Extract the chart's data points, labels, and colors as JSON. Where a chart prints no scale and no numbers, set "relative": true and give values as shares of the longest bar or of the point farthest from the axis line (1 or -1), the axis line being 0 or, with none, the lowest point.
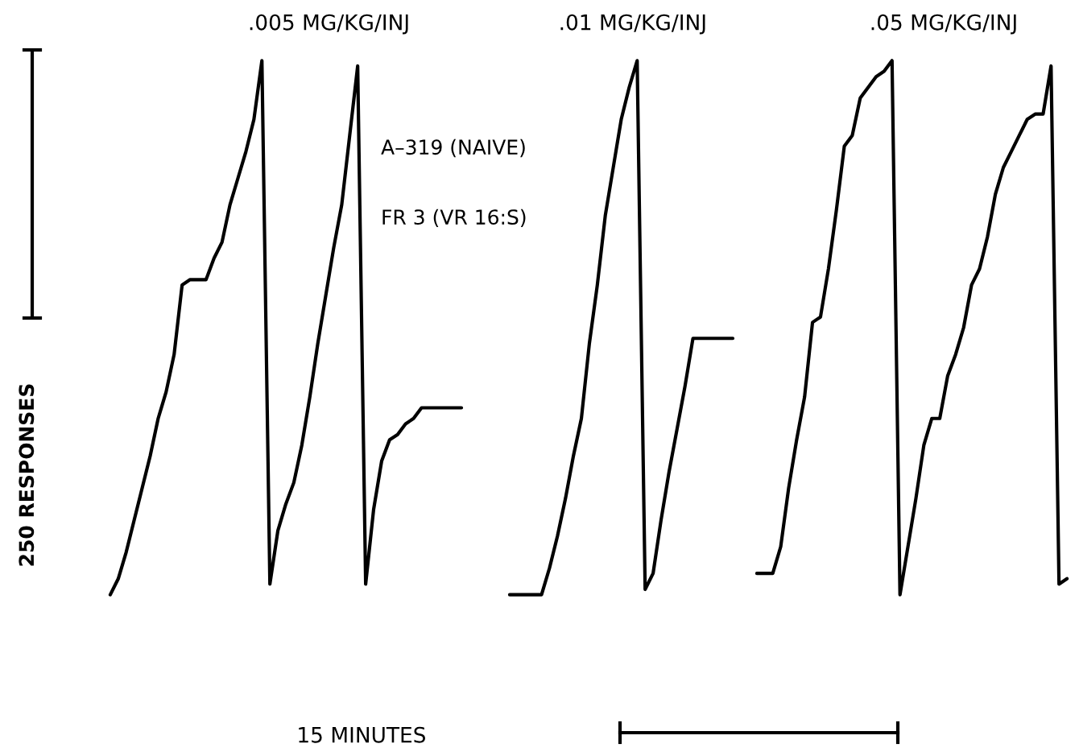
{
  "chart_data": [
    {
      "type": "line",
      "title": ".005 MG/KG/INJ",
      "ylabel": "250 RESPONSES",
      "relative": true,
      "annotations": [
        "A–319 (NAIVE)",
        "FR 3 (VR 16:S)",
        "15 MINUTES"
      ],
      "categories": [
        null,
        null,
        null,
        null,
        null,
        null,
        null,
        null,
        null,
        null,
        null,
        null,
        null,
        null,
        null,
        null,
        null,
        null,
        null,
        null,
        null,
        null,
        null,
        null,
        null,
        null,
        null,
        null,
        null,
        null,
        null,
        null,
        null,
        null,
        null,
        null,
        null,
        null,
        null,
        null,
        null,
        null,
        null,
        null,
        null
      ],
      "series": [
        {
          "color": "#000000",
          "values": [
            0,
            0.03,
            0.08,
            0.14,
            0.2,
            0.26,
            0.33,
            0.38,
            0.45,
            0.58,
            0.59,
            0.59,
            0.59,
            0.63,
            0.66,
            0.73,
            0.78,
            0.83,
            0.89,
            1.0,
            0.02,
            0.12,
            0.17,
            0.21,
            0.28,
            0.37,
            0.47,
            0.56,
            0.65,
            0.73,
            0.86,
            0.99,
            0.02,
            0.16,
            0.25,
            0.29,
            0.3,
            0.32,
            0.33,
            0.35,
            0.35,
            0.35,
            0.35,
            0.35,
            0.35
          ]
        }
      ]
    },
    {
      "type": "line",
      "title": ".01 MG/KG/INJ",
      "relative": true,
      "categories": [
        null,
        null,
        null,
        null,
        null,
        null,
        null,
        null,
        null,
        null,
        null,
        null,
        null,
        null,
        null,
        null,
        null,
        null,
        null,
        null,
        null,
        null,
        null,
        null,
        null,
        null,
        null,
        null,
        null
      ],
      "series": [
        {
          "color": "#000000",
          "values": [
            0,
            0,
            0,
            0,
            0,
            0.05,
            0.11,
            0.18,
            0.26,
            0.33,
            0.47,
            0.58,
            0.71,
            0.8,
            0.89,
            0.95,
            1.0,
            0.01,
            0.04,
            0.14,
            0.23,
            0.31,
            0.39,
            0.48,
            0.48,
            0.48,
            0.48,
            0.48,
            0.48
          ]
        }
      ]
    },
    {
      "type": "line",
      "title": ".05 MG/KG/INJ",
      "relative": true,
      "categories": [
        null,
        null,
        null,
        null,
        null,
        null,
        null,
        null,
        null,
        null,
        null,
        null,
        null,
        null,
        null,
        null,
        null,
        null,
        null,
        null,
        null,
        null,
        null,
        null,
        null,
        null,
        null,
        null,
        null,
        null,
        null,
        null,
        null,
        null,
        null,
        null,
        null,
        null,
        null,
        null
      ],
      "series": [
        {
          "color": "#000000",
          "values": [
            0.04,
            0.04,
            0.04,
            0.09,
            0.2,
            0.29,
            0.37,
            0.51,
            0.52,
            0.61,
            0.72,
            0.84,
            0.86,
            0.93,
            0.95,
            0.97,
            0.98,
            1.0,
            0,
            0.09,
            0.18,
            0.28,
            0.33,
            0.33,
            0.41,
            0.45,
            0.5,
            0.58,
            0.61,
            0.67,
            0.75,
            0.8,
            0.83,
            0.86,
            0.89,
            0.9,
            0.9,
            0.99,
            0.02,
            0.03
          ]
        }
      ]
    }
  ]
}
